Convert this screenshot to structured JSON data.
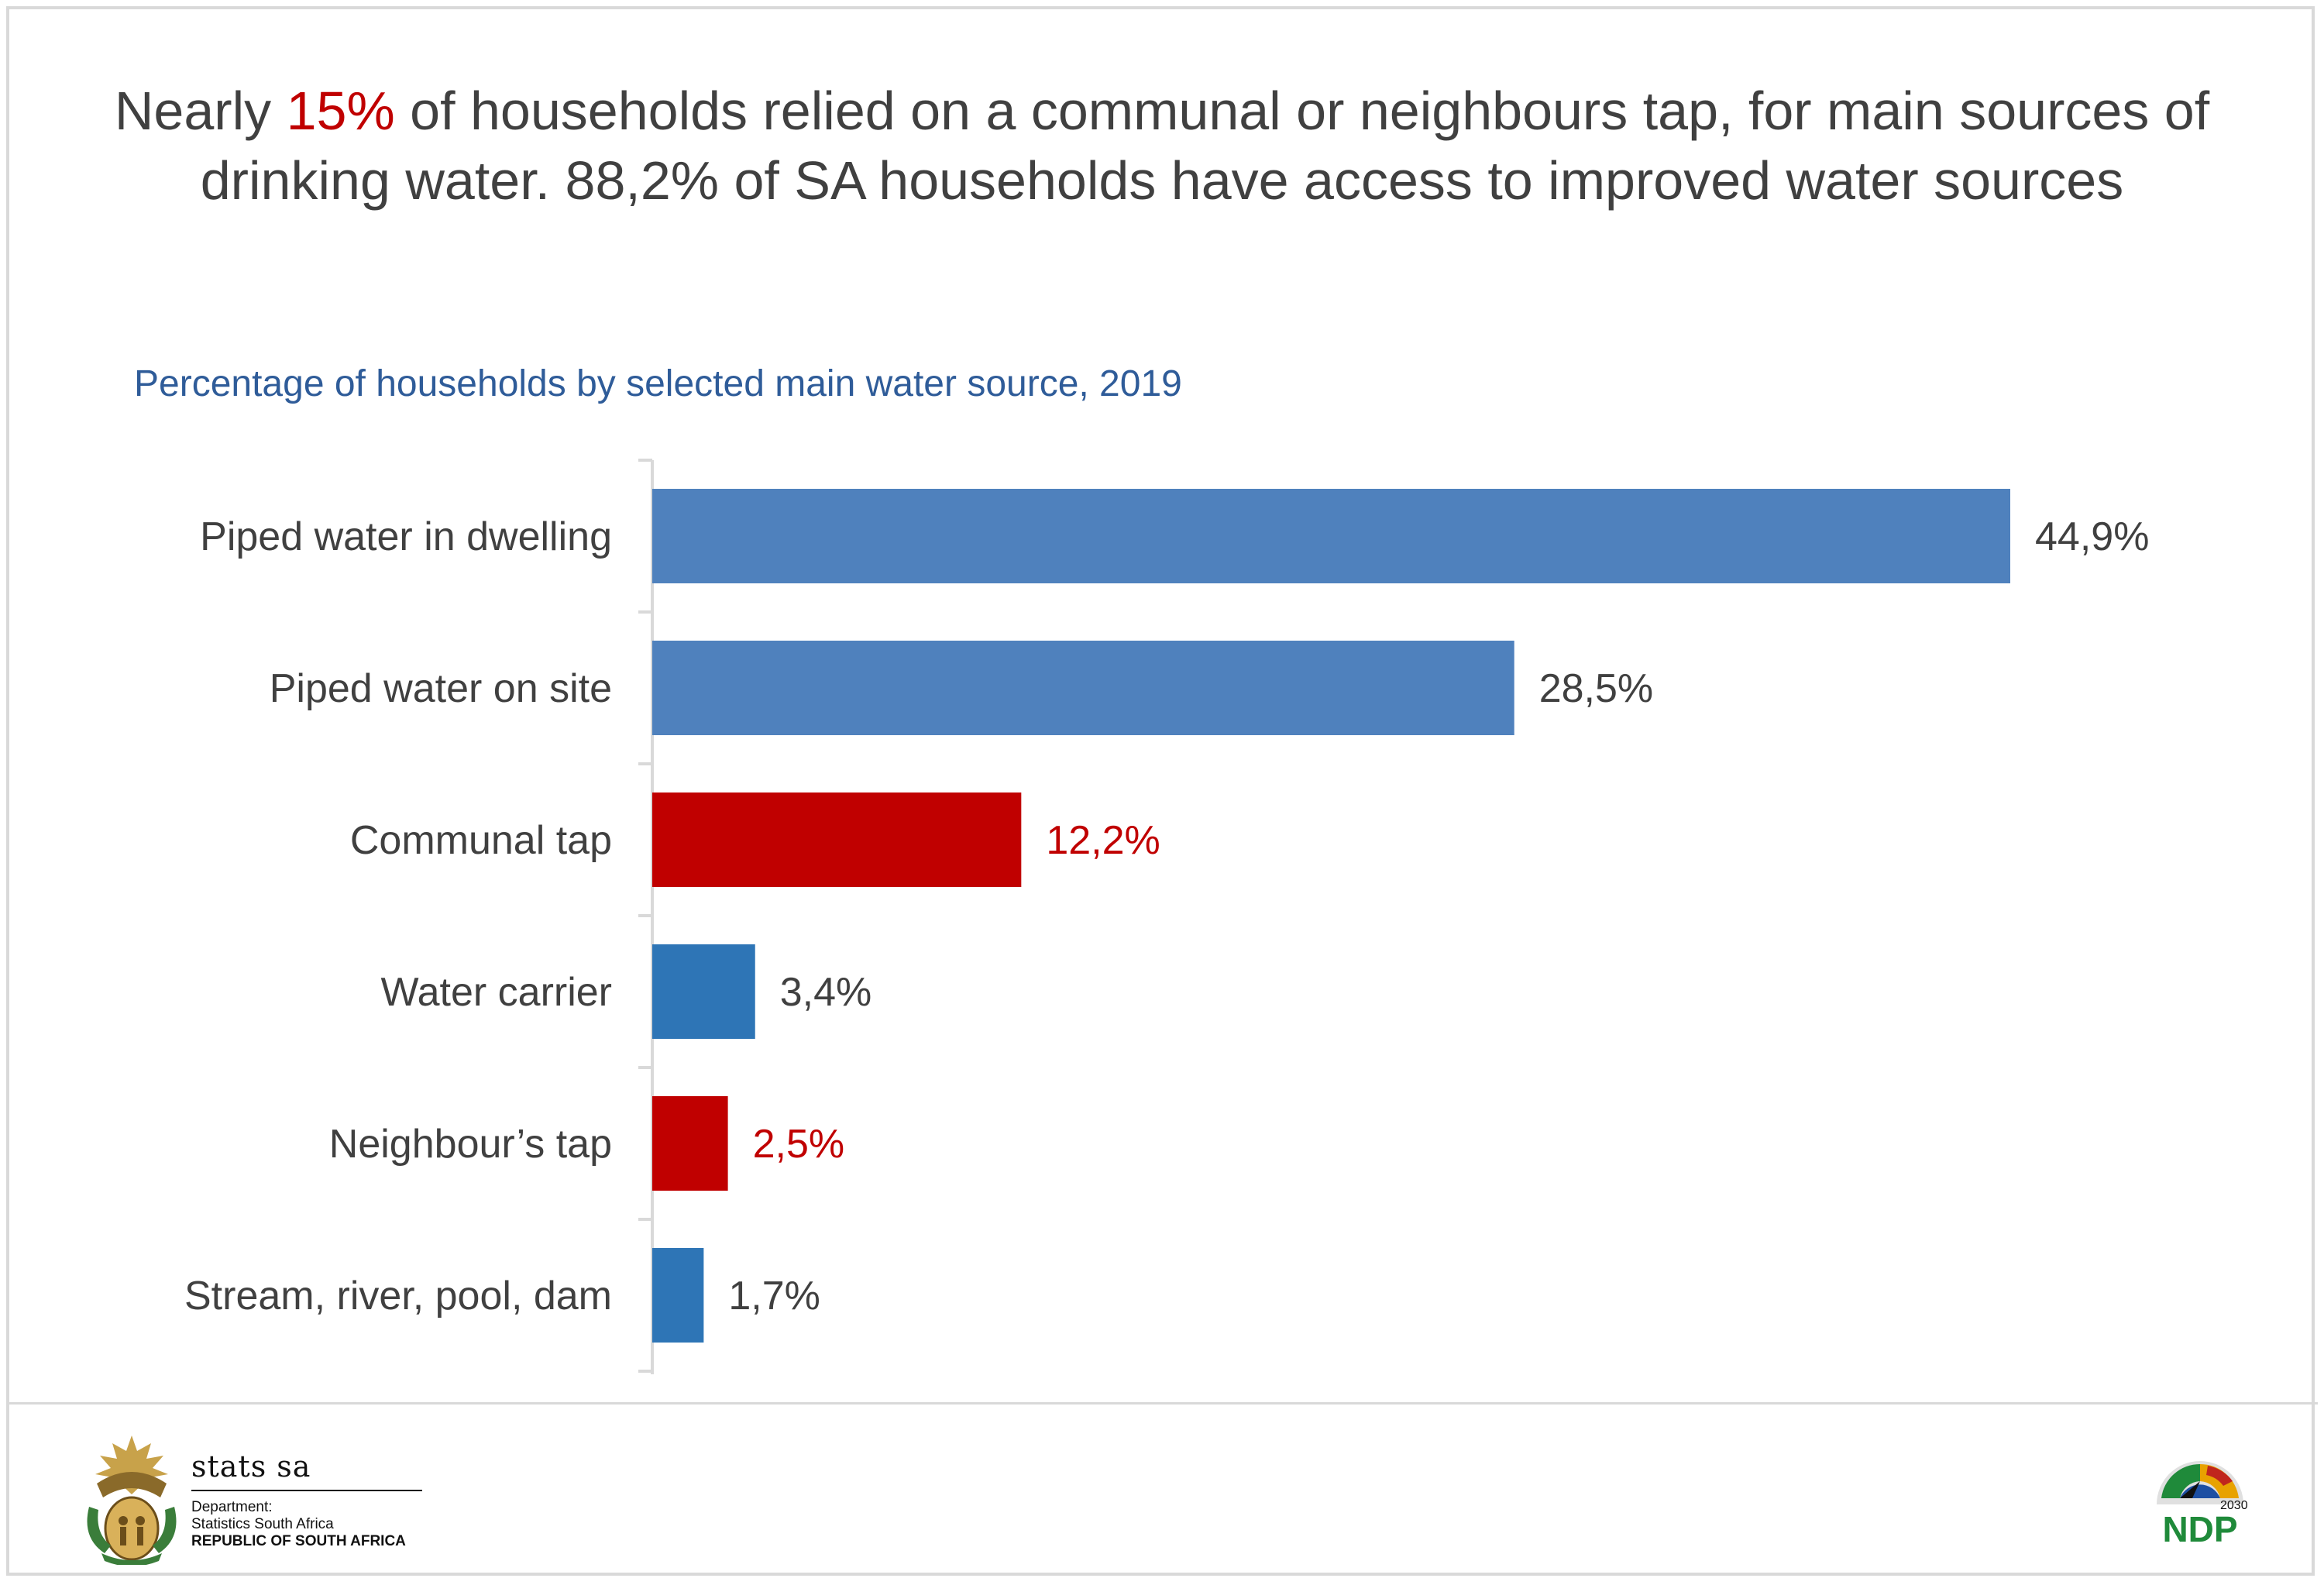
{
  "headline": {
    "part1": "Nearly ",
    "highlight": "15%",
    "part2": " of households relied on a communal or neighbours tap, for main sources of drinking water. 88,2% of SA households have access to improved water sources",
    "highlight_color": "#c00000",
    "text_color": "#404040"
  },
  "chart_data": {
    "type": "bar",
    "orientation": "horizontal",
    "title": "Percentage of households by selected main water source, 2019",
    "categories": [
      "Piped water in dwelling",
      "Piped water on site",
      "Communal tap",
      "Water carrier",
      "Neighbour’s tap",
      "Stream, river, pool, dam"
    ],
    "values": [
      44.9,
      28.5,
      12.2,
      3.4,
      2.5,
      1.7
    ],
    "value_labels": [
      "44,9%",
      "28,5%",
      "12,2%",
      "3,4%",
      "2,5%",
      "1,7%"
    ],
    "bar_colors": [
      "#4f81bd",
      "#4f81bd",
      "#c00000",
      "#2e75b6",
      "#c00000",
      "#2e75b6"
    ],
    "label_colors": [
      "#404040",
      "#404040",
      "#c00000",
      "#404040",
      "#c00000",
      "#404040"
    ],
    "xlim": [
      0,
      50
    ],
    "grid": false,
    "legend": "none"
  },
  "footer": {
    "brand": "stats sa",
    "dept_line1": "Department:",
    "dept_line2": "Statistics South Africa",
    "dept_line3": "REPUBLIC OF SOUTH AFRICA",
    "ndp_text": "NDP",
    "ndp_year": "2030"
  },
  "icons": [
    "coat-of-arms-icon",
    "ndp-2030-logo-icon"
  ]
}
